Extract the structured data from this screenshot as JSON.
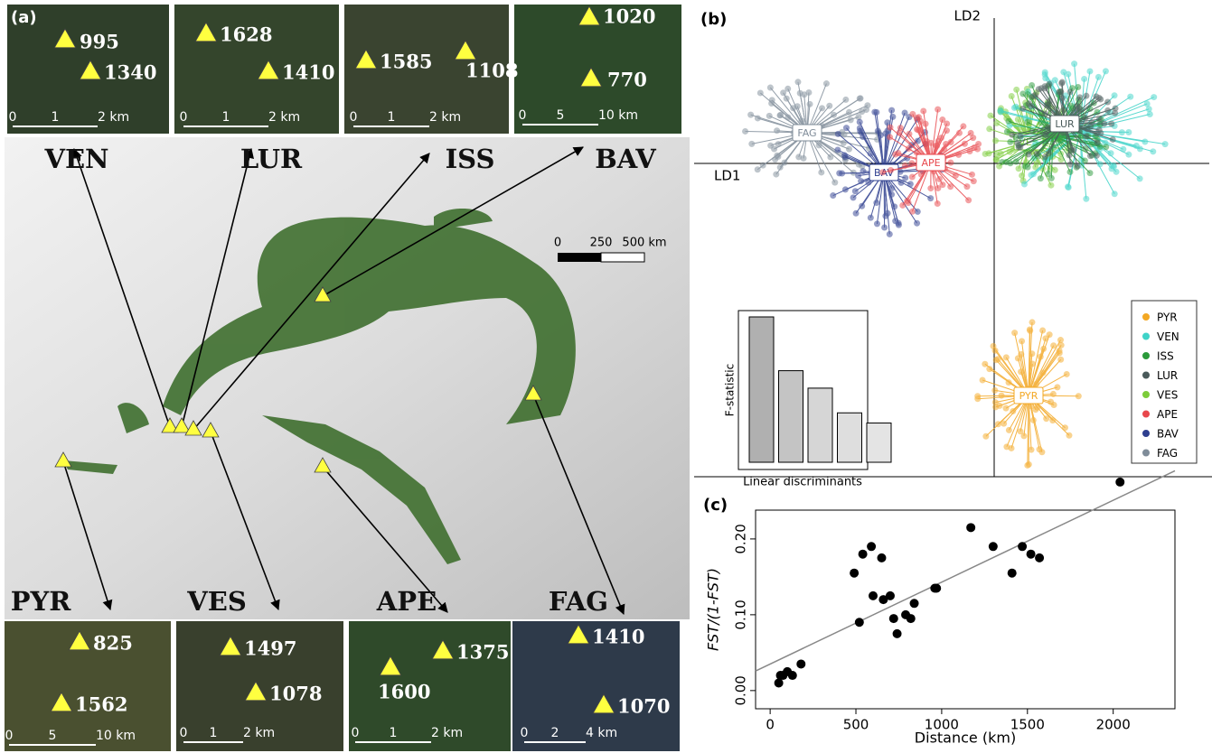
{
  "panels": {
    "a": "(a)",
    "b": "(b)",
    "c": "(c)"
  },
  "sites": [
    {
      "code": "VEN",
      "elevations": [
        995,
        1340
      ],
      "scale": [
        "0",
        "1",
        "2 km"
      ]
    },
    {
      "code": "LUR",
      "elevations": [
        1628,
        1410
      ],
      "scale": [
        "0",
        "1",
        "2 km"
      ]
    },
    {
      "code": "ISS",
      "elevations": [
        1585,
        1108
      ],
      "scale": [
        "0",
        "1",
        "2 km"
      ]
    },
    {
      "code": "BAV",
      "elevations": [
        1020,
        770
      ],
      "scale": [
        "0",
        "5",
        "10 km"
      ]
    },
    {
      "code": "PYR",
      "elevations": [
        825,
        1562
      ],
      "scale": [
        "0",
        "5",
        "10 km"
      ]
    },
    {
      "code": "VES",
      "elevations": [
        1497,
        1078
      ],
      "scale": [
        "0",
        "1",
        "2 km"
      ]
    },
    {
      "code": "APE",
      "elevations": [
        1375,
        1600
      ],
      "scale": [
        "0",
        "1",
        "2 km"
      ]
    },
    {
      "code": "FAG",
      "elevations": [
        1410,
        1070
      ],
      "scale": [
        "0",
        "2",
        "4 km"
      ]
    }
  ],
  "map_scale": [
    "0",
    "250",
    "500 km"
  ],
  "lda": {
    "axes": [
      "LD1",
      "LD2"
    ],
    "groups": [
      {
        "name": "PYR",
        "color": "#f3a824"
      },
      {
        "name": "VEN",
        "color": "#3fd3c8"
      },
      {
        "name": "ISS",
        "color": "#2a9a3a"
      },
      {
        "name": "LUR",
        "color": "#4a5a5a"
      },
      {
        "name": "VES",
        "color": "#7ccc3a"
      },
      {
        "name": "APE",
        "color": "#e8474c"
      },
      {
        "name": "BAV",
        "color": "#2e3f8f"
      },
      {
        "name": "FAG",
        "color": "#7f8c99"
      }
    ],
    "inset": {
      "ylabel": "F-statistic",
      "xlabel": "Linear discriminants",
      "values": [
        100,
        63,
        51,
        34,
        27
      ]
    }
  },
  "chart_data": {
    "type": "scatter",
    "xlabel": "Distance (km)",
    "ylabel": "FST/(1-FST)",
    "x": [
      50,
      60,
      75,
      100,
      130,
      180,
      490,
      520,
      540,
      590,
      600,
      650,
      660,
      700,
      720,
      740,
      790,
      820,
      840,
      960,
      970,
      1170,
      1300,
      1410,
      1470,
      1520,
      1570,
      2040
    ],
    "values": [
      0.01,
      0.02,
      0.02,
      0.025,
      0.02,
      0.035,
      0.155,
      0.09,
      0.18,
      0.19,
      0.125,
      0.175,
      0.12,
      0.125,
      0.095,
      0.075,
      0.1,
      0.095,
      0.115,
      0.135,
      0.135,
      0.215,
      0.19,
      0.155,
      0.19,
      0.18,
      0.175,
      0.275
    ],
    "fit": {
      "intercept": 0.035,
      "slope": 0.000108
    },
    "xlim": [
      -85,
      2360
    ],
    "ylim": [
      -0.024,
      0.238
    ],
    "xticks": [
      0,
      500,
      1000,
      1500,
      2000
    ],
    "yticks": [
      {
        "value": 0,
        "label": "0.00"
      },
      {
        "value": 0.1,
        "label": "0.10"
      },
      {
        "value": 0.2,
        "label": "0.20"
      }
    ],
    "color": "#000"
  }
}
